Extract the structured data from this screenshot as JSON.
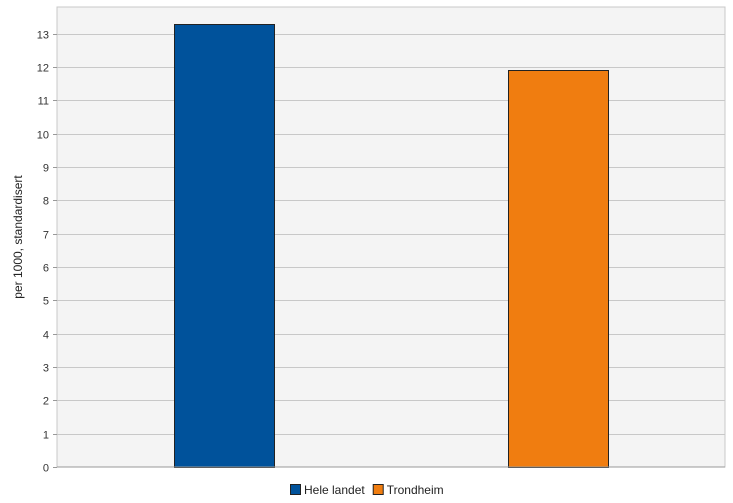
{
  "chart_data": {
    "type": "bar",
    "categories": [
      "Hele landet",
      "Trondheim"
    ],
    "series": [
      {
        "name": "Hele landet",
        "values": [
          13.3,
          null
        ],
        "color": "#00529b"
      },
      {
        "name": "Trondheim",
        "values": [
          null,
          11.9
        ],
        "color": "#f07d10"
      }
    ],
    "ylabel": "per 1000, standardisert",
    "xlabel": "",
    "ylim": [
      0,
      13.8
    ],
    "yticks": [
      0,
      1,
      2,
      3,
      4,
      5,
      6,
      7,
      8,
      9,
      10,
      11,
      12,
      13
    ],
    "grid": true,
    "legend_position": "bottom",
    "legend": [
      {
        "label": "Hele landet",
        "color": "#00529b"
      },
      {
        "label": "Trondheim",
        "color": "#f07d10"
      }
    ],
    "plot_background": "#f4f4f4",
    "gridline_color": "#c8c8c8"
  }
}
